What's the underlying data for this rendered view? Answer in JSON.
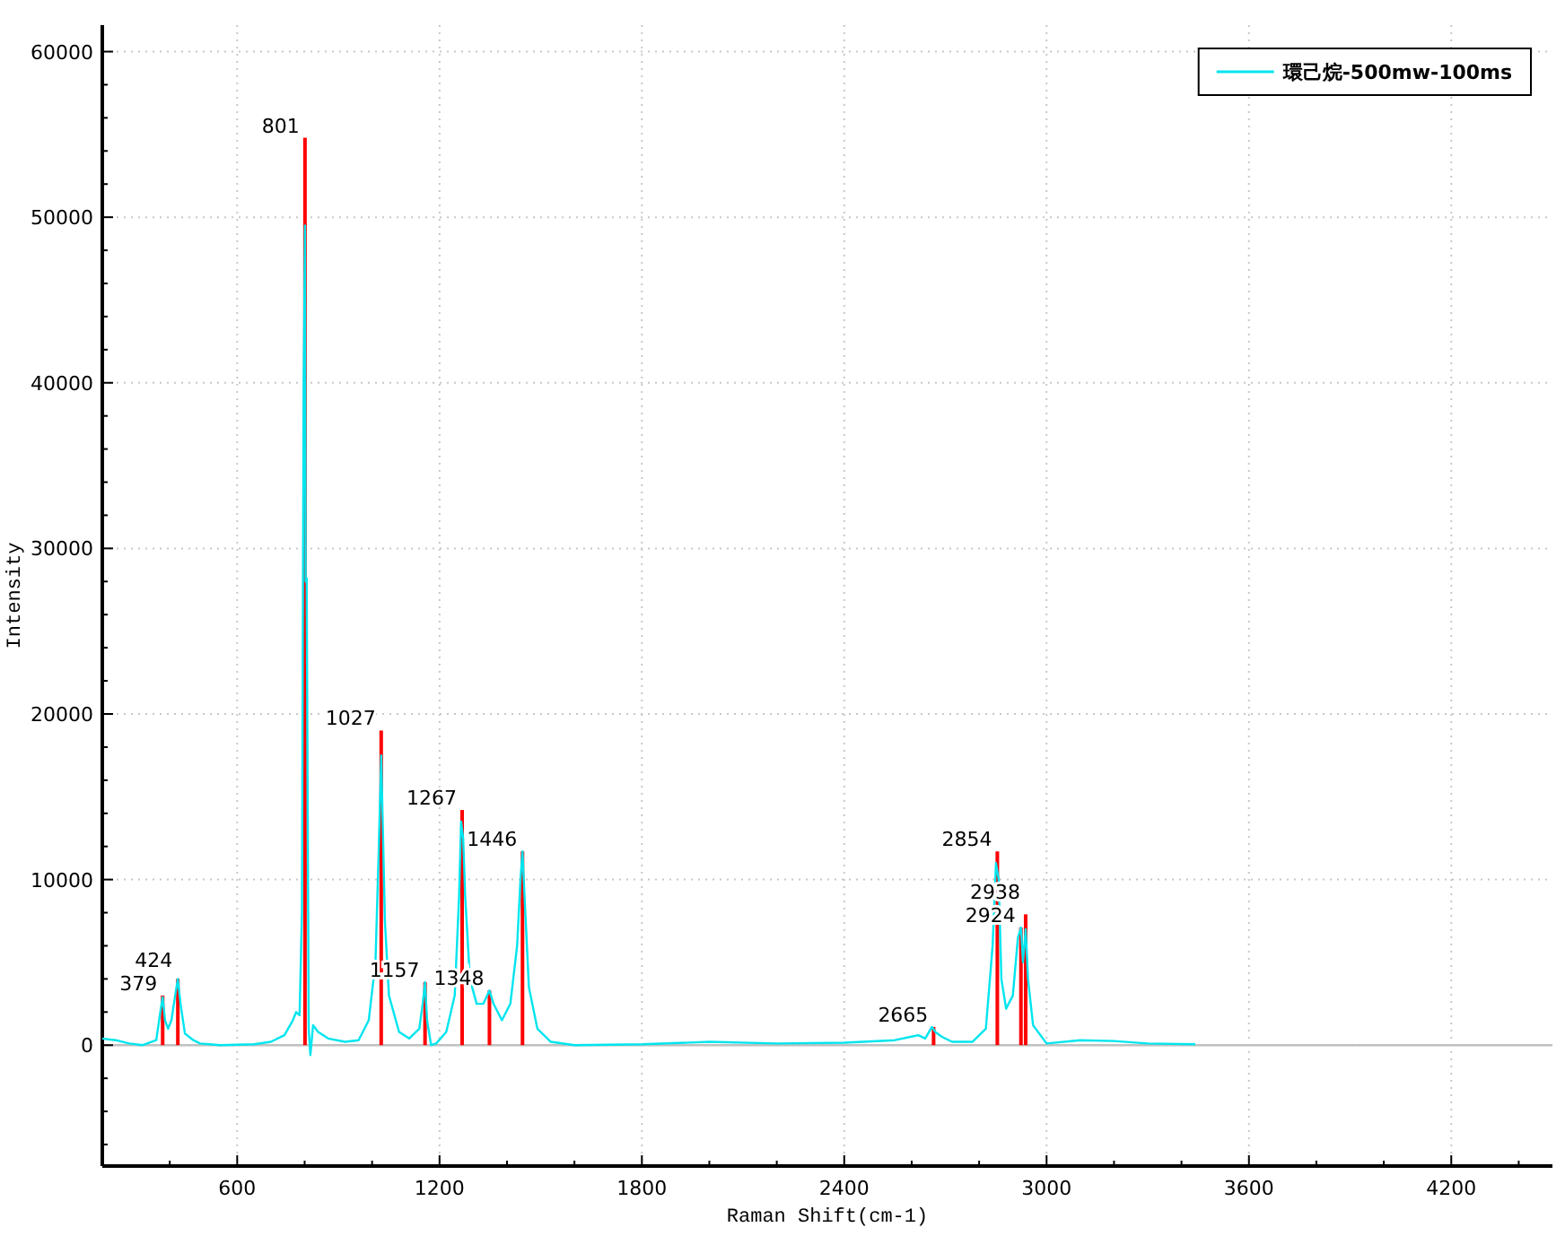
{
  "chart_data": {
    "type": "line",
    "xlabel": "Raman Shift(cm-1)",
    "ylabel": "Intensity",
    "xlim": [
      200,
      4500
    ],
    "xticks": [
      {
        "value": 400,
        "label": null
      },
      600,
      {
        "value": 800,
        "label": null
      },
      {
        "value": 1000,
        "label": null
      },
      1200,
      {
        "value": 1400,
        "label": null
      },
      {
        "value": 1600,
        "label": null
      },
      1800,
      {
        "value": 2000,
        "label": null
      },
      {
        "value": 2200,
        "label": null
      },
      2400,
      {
        "value": 2600,
        "label": null
      },
      {
        "value": 2800,
        "label": null
      },
      3000,
      {
        "value": 3200,
        "label": null
      },
      {
        "value": 3400,
        "label": null
      },
      3600,
      {
        "value": 3800,
        "label": null
      },
      {
        "value": 4000,
        "label": null
      },
      4200,
      {
        "value": 4400,
        "label": null
      }
    ],
    "ylim": [
      -7300,
      61600
    ],
    "yticks": [
      {
        "value": -6000,
        "label": null
      },
      {
        "value": -4000,
        "label": null
      },
      {
        "value": -2000,
        "label": null
      },
      0,
      {
        "value": 2000,
        "label": null
      },
      {
        "value": 4000,
        "label": null
      },
      {
        "value": 6000,
        "label": null
      },
      {
        "value": 8000,
        "label": null
      },
      10000,
      {
        "value": 12000,
        "label": null
      },
      {
        "value": 14000,
        "label": null
      },
      {
        "value": 16000,
        "label": null
      },
      {
        "value": 18000,
        "label": null
      },
      20000,
      {
        "value": 22000,
        "label": null
      },
      {
        "value": 24000,
        "label": null
      },
      {
        "value": 26000,
        "label": null
      },
      {
        "value": 28000,
        "label": null
      },
      30000,
      {
        "value": 32000,
        "label": null
      },
      {
        "value": 34000,
        "label": null
      },
      {
        "value": 36000,
        "label": null
      },
      {
        "value": 38000,
        "label": null
      },
      40000,
      {
        "value": 42000,
        "label": null
      },
      {
        "value": 44000,
        "label": null
      },
      {
        "value": 46000,
        "label": null
      },
      {
        "value": 48000,
        "label": null
      },
      50000,
      {
        "value": 52000,
        "label": null
      },
      {
        "value": 54000,
        "label": null
      },
      {
        "value": 56000,
        "label": null
      },
      {
        "value": 58000,
        "label": null
      },
      60000
    ],
    "grid": true,
    "legend": "top right",
    "marker": "none",
    "line_style": "solid",
    "ref_lines": [
      {
        "axis": "y",
        "value": 0,
        "color": "#c0c0c0"
      }
    ],
    "series": [
      {
        "name": "環己烷-500mw-100ms",
        "color": "#00e5ee",
        "x": [
          200,
          240,
          280,
          320,
          360,
          372,
          379,
          386,
          395,
          405,
          416,
          424,
          432,
          445,
          470,
          490,
          550,
          650,
          700,
          740,
          765,
          775,
          785,
          792,
          797,
          801,
          803,
          806,
          812,
          817,
          825,
          840,
          870,
          920,
          960,
          990,
          1010,
          1020,
          1027,
          1032,
          1038,
          1050,
          1080,
          1110,
          1140,
          1150,
          1157,
          1163,
          1175,
          1190,
          1220,
          1245,
          1258,
          1264,
          1270,
          1276,
          1290,
          1310,
          1330,
          1348,
          1360,
          1385,
          1410,
          1430,
          1440,
          1446,
          1452,
          1465,
          1490,
          1530,
          1600,
          1800,
          2000,
          2200,
          2400,
          2550,
          2620,
          2640,
          2660,
          2670,
          2690,
          2720,
          2780,
          2820,
          2840,
          2850,
          2858,
          2866,
          2880,
          2900,
          2915,
          2924,
          2930,
          2938,
          2945,
          2960,
          3000,
          3100,
          3200,
          3300,
          3441
        ],
        "values": [
          400,
          300,
          100,
          0,
          300,
          2000,
          2900,
          1500,
          1000,
          1500,
          3000,
          4000,
          2500,
          700,
          300,
          100,
          0,
          50,
          200,
          600,
          1500,
          2000,
          1800,
          8000,
          40000,
          49500,
          28000,
          28200,
          1000,
          -600,
          1200,
          800,
          400,
          200,
          300,
          1500,
          5000,
          12000,
          17500,
          13000,
          7500,
          3000,
          800,
          400,
          1000,
          2500,
          3800,
          1500,
          0,
          100,
          800,
          3000,
          9000,
          13500,
          12500,
          9000,
          4000,
          2500,
          2500,
          3300,
          2500,
          1500,
          2500,
          6000,
          10000,
          11700,
          9000,
          3500,
          1000,
          200,
          0,
          50,
          200,
          100,
          150,
          300,
          600,
          400,
          1100,
          800,
          500,
          200,
          200,
          1000,
          6000,
          11000,
          10000,
          4000,
          2200,
          3000,
          6500,
          7100,
          5000,
          7000,
          4000,
          1200,
          100,
          300,
          250,
          100,
          50
        ]
      },
      {
        "type": "bar",
        "color": "#ff0000",
        "x": [
          379,
          424,
          801,
          1027,
          1157,
          1267,
          1348,
          1446,
          2665,
          2854,
          2924,
          2938
        ],
        "values": [
          3000,
          4000,
          54800,
          19000,
          3800,
          14200,
          3300,
          11700,
          1100,
          11700,
          7100,
          7900
        ]
      }
    ],
    "annotations": [
      {
        "text": "379",
        "x": 379,
        "y": 3000
      },
      {
        "text": "424",
        "x": 424,
        "y": 4000
      },
      {
        "text": "801",
        "x": 801,
        "y": 54800
      },
      {
        "text": "1027",
        "x": 1027,
        "y": 19000
      },
      {
        "text": "1157",
        "x": 1157,
        "y": 3800
      },
      {
        "text": "1267",
        "x": 1267,
        "y": 14200
      },
      {
        "text": "1348",
        "x": 1348,
        "y": 3300
      },
      {
        "text": "1446",
        "x": 1446,
        "y": 11700
      },
      {
        "text": "2665",
        "x": 2665,
        "y": 1100
      },
      {
        "text": "2854",
        "x": 2854,
        "y": 11700
      },
      {
        "text": "2924",
        "x": 2924,
        "y": 7100
      },
      {
        "text": "2938",
        "x": 2938,
        "y": 7900
      }
    ]
  }
}
